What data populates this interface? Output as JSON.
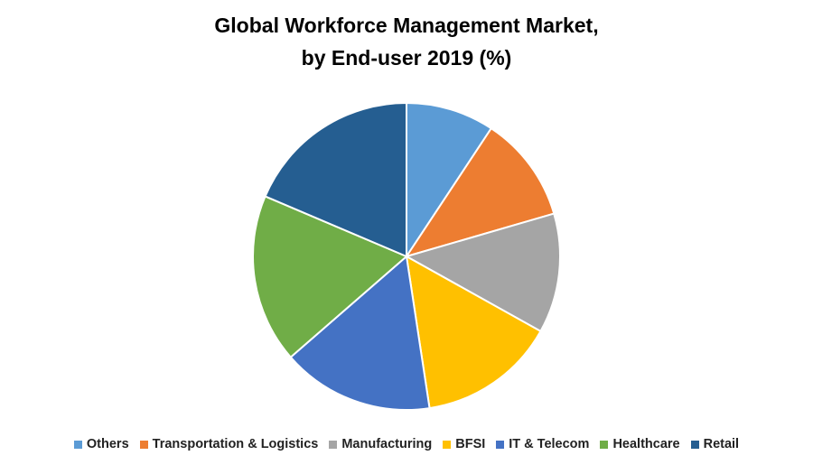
{
  "chart_data": {
    "type": "pie",
    "title": [
      "Global Workforce Management Market,",
      "by End-user 2019 (%)"
    ],
    "categories": [
      "Others",
      "Transportation & Logistics",
      "Manufacturing",
      "BFSI",
      "IT & Telecom",
      "Healthcare",
      "Retail"
    ],
    "values": [
      9.3,
      11.2,
      12.6,
      14.5,
      16,
      17.8,
      18.6
    ],
    "colors": [
      "#5b9bd5",
      "#ed7d31",
      "#a5a5a5",
      "#ffc000",
      "#4472c4",
      "#70ad47",
      "#255e91"
    ],
    "legend": "bottom"
  }
}
